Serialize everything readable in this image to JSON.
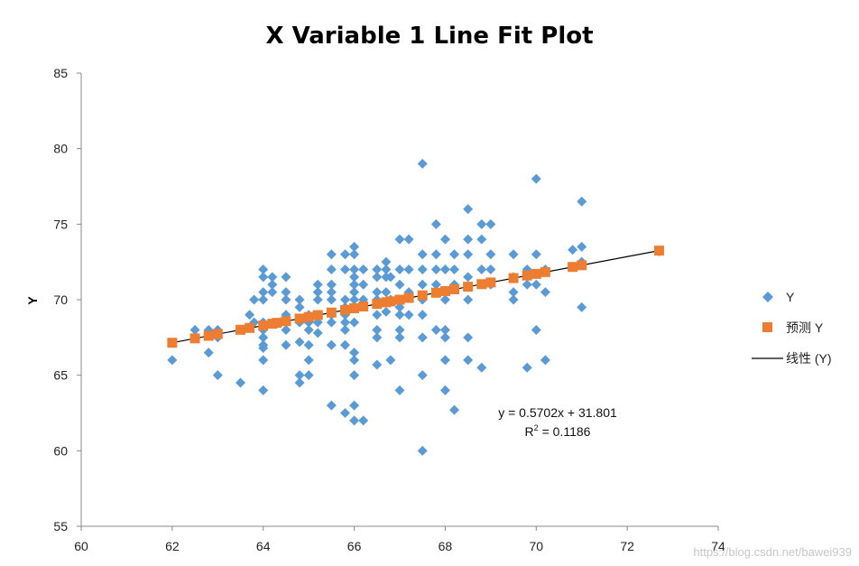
{
  "chart_data": {
    "type": "scatter",
    "title": "X Variable 1 Line Fit  Plot",
    "xlabel": "",
    "ylabel": "Y",
    "xlim": [
      60,
      74
    ],
    "ylim": [
      55,
      85
    ],
    "x_ticks": [
      "60",
      "62",
      "64",
      "66",
      "68",
      "70",
      "72",
      "74"
    ],
    "y_ticks": [
      "55",
      "60",
      "65",
      "70",
      "75",
      "80",
      "85"
    ],
    "grid": false,
    "legend_position": "right",
    "series": [
      {
        "name": "Y",
        "marker": "diamond",
        "color": "#5b9bd5",
        "x": [
          62,
          62.5,
          62.5,
          62.8,
          62.8,
          63,
          63,
          63,
          63.5,
          63.5,
          63.7,
          63.8,
          63.8,
          64,
          64,
          64,
          64,
          64,
          64,
          64,
          64,
          64,
          64,
          64,
          64.2,
          64.2,
          64.2,
          64.5,
          64.5,
          64.5,
          64.5,
          64.5,
          64.5,
          64.5,
          64.8,
          64.8,
          64.8,
          64.8,
          64.8,
          64.8,
          65,
          65,
          65,
          65,
          65,
          65,
          65.2,
          65.2,
          65.2,
          65.2,
          65.2,
          65.5,
          65.5,
          65.5,
          65.5,
          65.5,
          65.5,
          65.5,
          65.5,
          65.5,
          65.5,
          65.8,
          65.8,
          65.8,
          65.8,
          65.8,
          65.8,
          65.8,
          65.8,
          65.8,
          66,
          66,
          66,
          66,
          66,
          66,
          66,
          66,
          66,
          66,
          66,
          66,
          66,
          66,
          66.2,
          66.2,
          66.2,
          66.2,
          66.5,
          66.5,
          66.5,
          66.5,
          66.5,
          66.5,
          66.5,
          66.5,
          66.7,
          66.7,
          66.7,
          66.7,
          66.7,
          66.8,
          66.8,
          66.8,
          67,
          67,
          67,
          67,
          67,
          67,
          67,
          67,
          67,
          67.2,
          67.2,
          67.2,
          67.2,
          67.5,
          67.5,
          67.5,
          67.5,
          67.5,
          67.5,
          67.5,
          67.5,
          67.5,
          67.8,
          67.8,
          67.8,
          67.8,
          67.8,
          68,
          68,
          68,
          68,
          68,
          68,
          68,
          68.2,
          68.2,
          68.2,
          68.2,
          68.5,
          68.5,
          68.5,
          68.5,
          68.5,
          68.5,
          68.5,
          68.8,
          68.8,
          68.8,
          68.8,
          69,
          69,
          69,
          69,
          69.5,
          69.5,
          69.5,
          69.5,
          69.8,
          69.8,
          69.8,
          70,
          70,
          70,
          70,
          70.2,
          70.2,
          70.2,
          70.8,
          71,
          71,
          71,
          71,
          72.7
        ],
        "y": [
          66,
          68,
          67.5,
          68,
          66.5,
          68,
          65,
          67.5,
          64.5,
          68,
          69,
          70,
          68.5,
          72,
          71.5,
          70.5,
          70,
          68.5,
          68,
          67.5,
          67,
          66.8,
          66,
          64,
          71.5,
          70.5,
          71,
          71.5,
          70.5,
          70,
          69,
          68.5,
          68,
          67,
          70,
          69.5,
          68.5,
          67.2,
          65,
          64.5,
          69,
          68.5,
          68,
          67,
          66,
          65,
          71,
          70.5,
          70,
          68.5,
          67.8,
          73,
          72,
          71,
          70.5,
          70,
          69,
          68.5,
          67,
          63,
          71,
          73,
          72,
          70,
          69.5,
          69,
          68.5,
          68,
          67,
          62.5,
          73.5,
          73,
          72,
          71.5,
          71,
          70.5,
          70,
          69.5,
          68.5,
          66.5,
          66,
          65,
          63,
          62,
          72,
          71,
          70,
          62,
          72,
          71.5,
          70.5,
          70,
          69,
          68,
          67.5,
          65.7,
          72.5,
          72,
          71.5,
          70.5,
          69.2,
          71.5,
          70,
          66,
          74,
          72,
          71,
          70,
          69.5,
          69,
          68,
          67.5,
          64,
          74,
          72,
          70.5,
          69,
          79,
          73,
          72,
          71,
          70,
          69,
          67.5,
          65,
          60,
          75,
          73,
          72,
          71,
          68,
          74,
          72,
          70,
          68,
          67.5,
          66,
          64,
          73,
          72,
          71,
          62.7,
          76,
          74,
          73,
          71.5,
          70,
          67.5,
          66,
          75,
          74,
          72,
          65.5,
          75,
          73,
          72,
          71,
          73,
          71.5,
          70.5,
          70,
          72,
          71,
          65.5,
          78,
          73,
          71,
          68,
          72,
          70.5,
          66,
          73.3,
          76.5,
          73.5,
          72.5,
          69.5,
          73.2
        ]
      },
      {
        "name": "预测 Y",
        "marker": "square",
        "color": "#ed7d31",
        "x": [
          62,
          62.5,
          62.8,
          63,
          63.5,
          63.7,
          64,
          64.2,
          64.3,
          64.5,
          64.8,
          65,
          65.2,
          65.5,
          65.8,
          66,
          66.2,
          66.5,
          66.7,
          66.8,
          67,
          67.2,
          67.5,
          67.8,
          68,
          68.2,
          68.5,
          68.8,
          69,
          69.5,
          69.8,
          70,
          70.2,
          70.8,
          71,
          72.7
        ],
        "y": [
          67.15,
          67.44,
          67.61,
          67.73,
          68.01,
          68.13,
          68.29,
          68.41,
          68.47,
          68.58,
          68.75,
          68.86,
          68.98,
          69.15,
          69.32,
          69.43,
          69.55,
          69.72,
          69.83,
          69.89,
          70.0,
          70.12,
          70.29,
          70.46,
          70.57,
          70.69,
          70.86,
          71.03,
          71.14,
          71.43,
          71.6,
          71.71,
          71.83,
          72.17,
          72.28,
          73.25
        ]
      },
      {
        "name": "线性 (Y)",
        "type": "line",
        "color": "#000000",
        "x": [
          62,
          72.7
        ],
        "y": [
          67.15,
          73.25
        ]
      }
    ],
    "trendline": {
      "equation": "y = 0.5702x + 31.801",
      "r2_prefix": "R",
      "r2_sup": "2",
      "r2_value": " = 0.1186"
    }
  },
  "watermark": "https://blog.csdn.net/bawei939"
}
